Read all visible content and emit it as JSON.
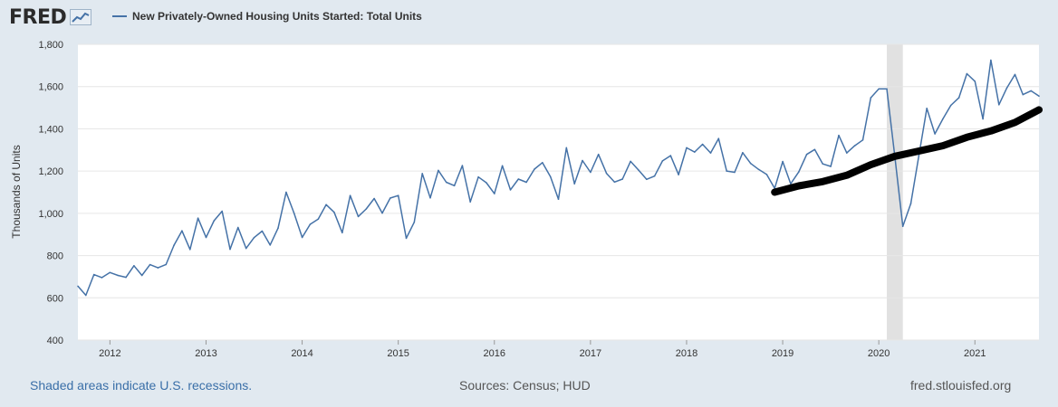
{
  "logo": {
    "text": "FRED"
  },
  "chart_data": {
    "type": "line",
    "title": "New Privately-Owned Housing Units Started: Total Units",
    "ylabel": "Thousands of Units",
    "ylim": [
      400,
      1800
    ],
    "yticks": [
      400,
      600,
      800,
      1000,
      1200,
      1400,
      1600,
      1800
    ],
    "ytick_labels": [
      "400",
      "600",
      "800",
      "1,000",
      "1,200",
      "1,400",
      "1,600",
      "1,800"
    ],
    "xlim": [
      "2011-09",
      "2021-09"
    ],
    "xticks": [
      "2012",
      "2013",
      "2014",
      "2015",
      "2016",
      "2017",
      "2018",
      "2019",
      "2020",
      "2021"
    ],
    "grid": true,
    "recessions": [
      {
        "start": "2020-02",
        "end": "2020-04"
      }
    ],
    "series": [
      {
        "name": "New Privately-Owned Housing Units Started: Total Units",
        "color": "#4572a7",
        "start": "2011-09",
        "values": [
          655,
          612,
          710,
          696,
          720,
          706,
          697,
          752,
          706,
          757,
          742,
          758,
          849,
          917,
          829,
          977,
          886,
          965,
          1010,
          830,
          933,
          834,
          885,
          916,
          850,
          930,
          1100,
          1000,
          886,
          948,
          973,
          1041,
          1005,
          908,
          1084,
          985,
          1021,
          1070,
          1001,
          1072,
          1084,
          882,
          958,
          1188,
          1073,
          1203,
          1147,
          1131,
          1226,
          1054,
          1172,
          1145,
          1093,
          1225,
          1111,
          1162,
          1147,
          1209,
          1240,
          1173,
          1067,
          1310,
          1140,
          1250,
          1194,
          1279,
          1189,
          1148,
          1162,
          1246,
          1205,
          1161,
          1176,
          1248,
          1273,
          1183,
          1310,
          1290,
          1327,
          1286,
          1354,
          1200,
          1194,
          1287,
          1236,
          1208,
          1184,
          1118,
          1245,
          1140,
          1196,
          1279,
          1302,
          1234,
          1222,
          1369,
          1286,
          1320,
          1347,
          1547,
          1589,
          1589,
          1268,
          938,
          1046,
          1273,
          1497,
          1376,
          1447,
          1511,
          1547,
          1661,
          1625,
          1447,
          1725,
          1514,
          1594,
          1657,
          1562,
          1580,
          1555
        ]
      }
    ],
    "annotations": [
      {
        "type": "freehand-stroke",
        "color": "#000000",
        "points": [
          [
            "2018-12",
            1100
          ],
          [
            "2019-03",
            1130
          ],
          [
            "2019-06",
            1150
          ],
          [
            "2019-09",
            1180
          ],
          [
            "2019-12",
            1230
          ],
          [
            "2020-03",
            1270
          ],
          [
            "2020-06",
            1295
          ],
          [
            "2020-09",
            1320
          ],
          [
            "2020-12",
            1360
          ],
          [
            "2021-03",
            1390
          ],
          [
            "2021-06",
            1430
          ],
          [
            "2021-09",
            1490
          ]
        ]
      }
    ]
  },
  "footer": {
    "left": "Shaded areas indicate U.S. recessions.",
    "center": "Sources: Census; HUD",
    "right": "fred.stlouisfed.org"
  }
}
